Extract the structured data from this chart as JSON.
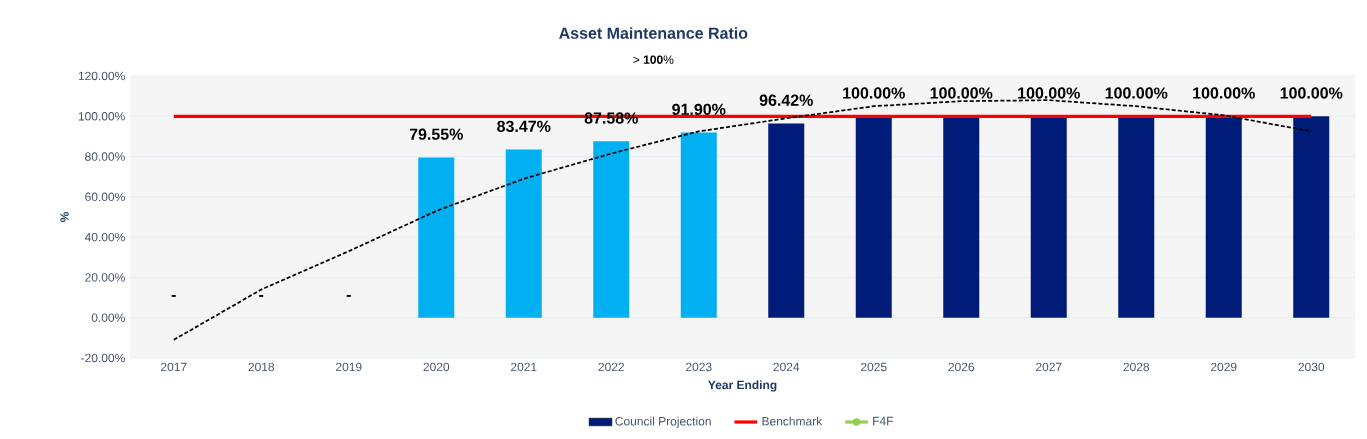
{
  "chart_data": {
    "type": "bar",
    "title": "Asset Maintenance Ratio",
    "subtitle": "> **100**%",
    "xlabel": "Year Ending",
    "ylabel": "%",
    "categories": [
      "2017",
      "2018",
      "2019",
      "2020",
      "2021",
      "2022",
      "2023",
      "2024",
      "2025",
      "2026",
      "2027",
      "2028",
      "2029",
      "2030"
    ],
    "ylim": [
      -20,
      120
    ],
    "yticks": [
      {
        "value": -20,
        "label": "-20.00%"
      },
      {
        "value": 0,
        "label": "0.00%"
      },
      {
        "value": 20,
        "label": "20.00%"
      },
      {
        "value": 40,
        "label": "40.00%"
      },
      {
        "value": 60,
        "label": "60.00%"
      },
      {
        "value": 80,
        "label": "80.00%"
      },
      {
        "value": 100,
        "label": "100.00%"
      },
      {
        "value": 120,
        "label": "120.00%"
      }
    ],
    "grid": "y",
    "legend": "bottom",
    "series": [
      {
        "color": "#e0e0e0",
        "values": [
          0,
          0,
          0,
          null,
          null,
          null,
          null,
          null,
          null,
          null,
          null,
          null,
          null,
          null
        ],
        "value_labels": [
          "-",
          "-",
          "-",
          null,
          null,
          null,
          null,
          null,
          null,
          null,
          null,
          null,
          null,
          null
        ]
      },
      {
        "color": "#00b0f0",
        "values": [
          null,
          null,
          null,
          79.55,
          83.47,
          87.58,
          91.9,
          null,
          null,
          null,
          null,
          null,
          null,
          null
        ],
        "value_labels": [
          null,
          null,
          null,
          "79.55%",
          "83.47%",
          "87.58%",
          "91.90%",
          null,
          null,
          null,
          null,
          null,
          null,
          null
        ]
      },
      {
        "name": "Council Projection",
        "color": "#001c78",
        "values": [
          null,
          null,
          null,
          null,
          null,
          null,
          null,
          96.42,
          100,
          100,
          100,
          100,
          100,
          100
        ],
        "value_labels": [
          null,
          null,
          null,
          null,
          null,
          null,
          null,
          "96.42%",
          "100.00%",
          "100.00%",
          "100.00%",
          "100.00%",
          "100.00%",
          "100.00%"
        ]
      },
      {
        "type": "line",
        "name": "Benchmark",
        "color": "#ff0000",
        "values": [
          100,
          100,
          100,
          100,
          100,
          100,
          100,
          100,
          100,
          100,
          100,
          100,
          100,
          100
        ]
      },
      {
        "type": "line",
        "name": "F4F",
        "color": "#92d050",
        "marker": "circle",
        "values": [
          null,
          null,
          null,
          null,
          null,
          null,
          null,
          null,
          null,
          null,
          null,
          null,
          null,
          null
        ]
      },
      {
        "type": "line",
        "color": "#000000",
        "line_style": "dashed",
        "values": [
          -11,
          14,
          33,
          53,
          69,
          81.5,
          92.5,
          99,
          105,
          107.5,
          108,
          105,
          100.5,
          92.5
        ]
      }
    ]
  }
}
